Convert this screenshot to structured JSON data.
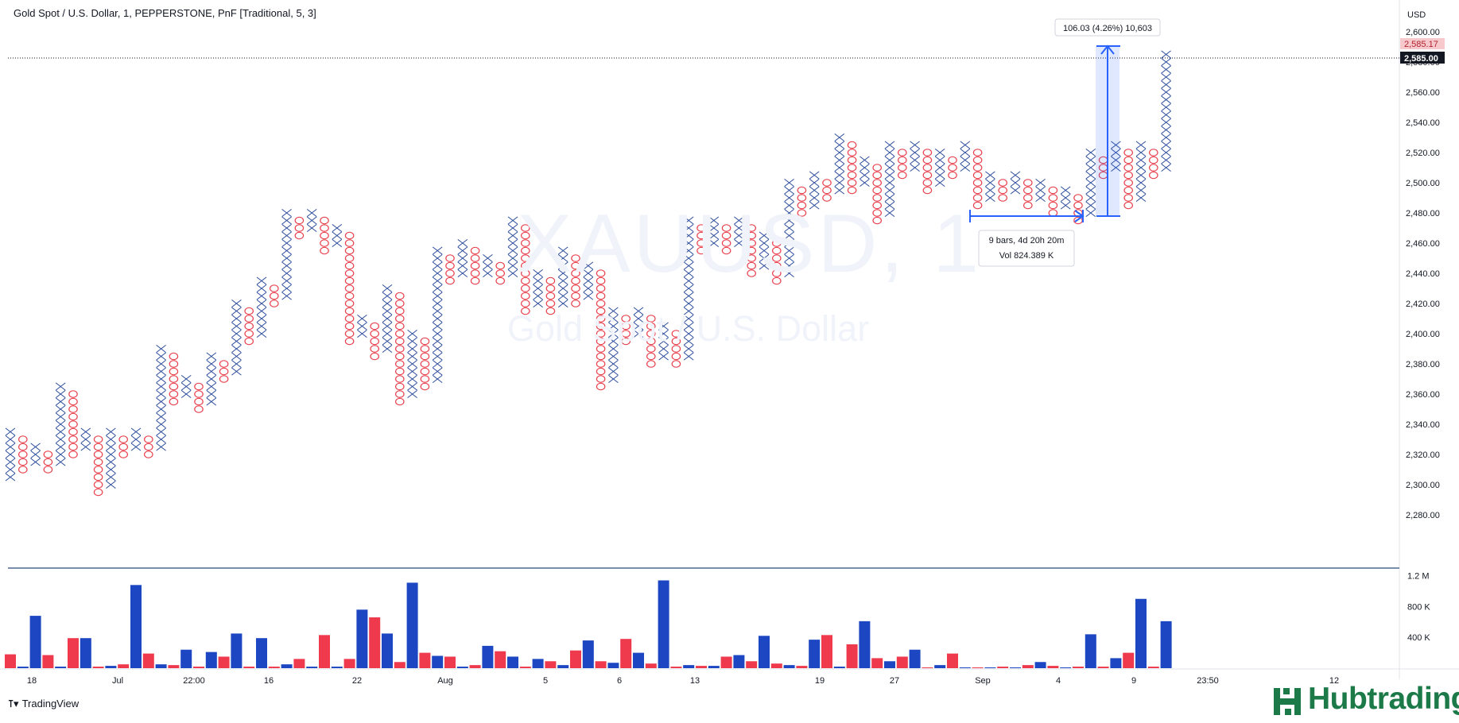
{
  "header": {
    "legend": "Gold Spot / U.S. Dollar, 1, PEPPERSTONE, PnF [Traditional, 5, 3]"
  },
  "watermark": {
    "symbol": "XAUUSD, 1",
    "description": "Gold Spot / U.S. Dollar"
  },
  "price_axis": {
    "currency": "USD",
    "tick_labels": [
      "2,600.00",
      "2,580.00",
      "2,560.00",
      "2,540.00",
      "2,520.00",
      "2,500.00",
      "2,480.00",
      "2,460.00",
      "2,440.00",
      "2,420.00",
      "2,400.00",
      "2,380.00",
      "2,360.00",
      "2,340.00",
      "2,320.00",
      "2,300.00",
      "2,280.00"
    ],
    "last_price_label": "2,585.00",
    "alt_price_label": "2,585.17"
  },
  "volume_axis": {
    "tick_labels": [
      "1.2 M",
      "800 K",
      "400 K"
    ]
  },
  "time_axis": {
    "tick_labels": [
      "18",
      "Jul",
      "22:00",
      "16",
      "22",
      "Aug",
      "5",
      "6",
      "13",
      "19",
      "27",
      "Sep",
      "4",
      "9",
      "23:50",
      "12"
    ]
  },
  "measure": {
    "price_range_label": "106.03 (4.26%) 10,603",
    "bars_label": "9 bars, 4d 20h 20m",
    "vol_label": "Vol 824.389 K"
  },
  "footer": {
    "brand": "TradingView",
    "watermark_logo": "Hubtrading"
  },
  "colors": {
    "x_mark": "#2a4a9b",
    "o_mark": "#e8414d",
    "vol_up": "#1c46c2",
    "vol_down": "#ef3a4d",
    "measure": "#2962ff",
    "last_price_bg": "#131722",
    "alt_price_bg": "#f7c8cc",
    "hub_green": "#1b7a48"
  },
  "chart_data": [
    {
      "type": "point_and_figure",
      "title": "Gold Spot / U.S. Dollar, 1, PEPPERSTONE, PnF [Traditional, 5, 3]",
      "box_size": 5,
      "reversal": 3,
      "ylim": [
        2270,
        2610
      ],
      "columns": [
        {
          "t": "X",
          "lo": 2305,
          "hi": 2335
        },
        {
          "t": "O",
          "lo": 2310,
          "hi": 2330
        },
        {
          "t": "X",
          "lo": 2315,
          "hi": 2325
        },
        {
          "t": "O",
          "lo": 2310,
          "hi": 2320
        },
        {
          "t": "X",
          "lo": 2315,
          "hi": 2365
        },
        {
          "t": "O",
          "lo": 2320,
          "hi": 2360
        },
        {
          "t": "X",
          "lo": 2325,
          "hi": 2335
        },
        {
          "t": "O",
          "lo": 2295,
          "hi": 2330
        },
        {
          "t": "X",
          "lo": 2300,
          "hi": 2335
        },
        {
          "t": "O",
          "lo": 2320,
          "hi": 2330
        },
        {
          "t": "X",
          "lo": 2325,
          "hi": 2335
        },
        {
          "t": "O",
          "lo": 2320,
          "hi": 2330
        },
        {
          "t": "X",
          "lo": 2325,
          "hi": 2390
        },
        {
          "t": "O",
          "lo": 2355,
          "hi": 2385
        },
        {
          "t": "X",
          "lo": 2360,
          "hi": 2370
        },
        {
          "t": "O",
          "lo": 2350,
          "hi": 2365
        },
        {
          "t": "X",
          "lo": 2355,
          "hi": 2385
        },
        {
          "t": "O",
          "lo": 2370,
          "hi": 2380
        },
        {
          "t": "X",
          "lo": 2375,
          "hi": 2420
        },
        {
          "t": "O",
          "lo": 2395,
          "hi": 2415
        },
        {
          "t": "X",
          "lo": 2400,
          "hi": 2435
        },
        {
          "t": "O",
          "lo": 2420,
          "hi": 2430
        },
        {
          "t": "X",
          "lo": 2425,
          "hi": 2480
        },
        {
          "t": "O",
          "lo": 2465,
          "hi": 2475
        },
        {
          "t": "X",
          "lo": 2470,
          "hi": 2480
        },
        {
          "t": "O",
          "lo": 2455,
          "hi": 2475
        },
        {
          "t": "X",
          "lo": 2460,
          "hi": 2470
        },
        {
          "t": "O",
          "lo": 2395,
          "hi": 2465
        },
        {
          "t": "X",
          "lo": 2400,
          "hi": 2410
        },
        {
          "t": "O",
          "lo": 2385,
          "hi": 2405
        },
        {
          "t": "X",
          "lo": 2390,
          "hi": 2430
        },
        {
          "t": "O",
          "lo": 2355,
          "hi": 2425
        },
        {
          "t": "X",
          "lo": 2360,
          "hi": 2400
        },
        {
          "t": "O",
          "lo": 2365,
          "hi": 2395
        },
        {
          "t": "X",
          "lo": 2370,
          "hi": 2455
        },
        {
          "t": "O",
          "lo": 2435,
          "hi": 2450
        },
        {
          "t": "X",
          "lo": 2440,
          "hi": 2460
        },
        {
          "t": "O",
          "lo": 2435,
          "hi": 2455
        },
        {
          "t": "X",
          "lo": 2440,
          "hi": 2450
        },
        {
          "t": "O",
          "lo": 2435,
          "hi": 2445
        },
        {
          "t": "X",
          "lo": 2440,
          "hi": 2475
        },
        {
          "t": "O",
          "lo": 2415,
          "hi": 2470
        },
        {
          "t": "X",
          "lo": 2420,
          "hi": 2440
        },
        {
          "t": "O",
          "lo": 2415,
          "hi": 2435
        },
        {
          "t": "X",
          "lo": 2420,
          "hi": 2455
        },
        {
          "t": "O",
          "lo": 2420,
          "hi": 2450
        },
        {
          "t": "X",
          "lo": 2425,
          "hi": 2445
        },
        {
          "t": "O",
          "lo": 2365,
          "hi": 2440
        },
        {
          "t": "X",
          "lo": 2370,
          "hi": 2415
        },
        {
          "t": "O",
          "lo": 2395,
          "hi": 2410
        },
        {
          "t": "X",
          "lo": 2400,
          "hi": 2415
        },
        {
          "t": "O",
          "lo": 2380,
          "hi": 2410
        },
        {
          "t": "X",
          "lo": 2385,
          "hi": 2405
        },
        {
          "t": "O",
          "lo": 2380,
          "hi": 2400
        },
        {
          "t": "X",
          "lo": 2385,
          "hi": 2475
        },
        {
          "t": "O",
          "lo": 2455,
          "hi": 2470
        },
        {
          "t": "X",
          "lo": 2460,
          "hi": 2475
        },
        {
          "t": "O",
          "lo": 2455,
          "hi": 2470
        },
        {
          "t": "X",
          "lo": 2460,
          "hi": 2475
        },
        {
          "t": "O",
          "lo": 2440,
          "hi": 2470
        },
        {
          "t": "X",
          "lo": 2445,
          "hi": 2465
        },
        {
          "t": "O",
          "lo": 2435,
          "hi": 2460
        },
        {
          "t": "X",
          "lo": 2440,
          "hi": 2500
        },
        {
          "t": "O",
          "lo": 2480,
          "hi": 2495
        },
        {
          "t": "X",
          "lo": 2485,
          "hi": 2505
        },
        {
          "t": "O",
          "lo": 2490,
          "hi": 2500
        },
        {
          "t": "X",
          "lo": 2495,
          "hi": 2530
        },
        {
          "t": "O",
          "lo": 2495,
          "hi": 2525
        },
        {
          "t": "X",
          "lo": 2500,
          "hi": 2515
        },
        {
          "t": "O",
          "lo": 2475,
          "hi": 2510
        },
        {
          "t": "X",
          "lo": 2480,
          "hi": 2525
        },
        {
          "t": "O",
          "lo": 2505,
          "hi": 2520
        },
        {
          "t": "X",
          "lo": 2510,
          "hi": 2525
        },
        {
          "t": "O",
          "lo": 2495,
          "hi": 2520
        },
        {
          "t": "X",
          "lo": 2500,
          "hi": 2520
        },
        {
          "t": "O",
          "lo": 2505,
          "hi": 2515
        },
        {
          "t": "X",
          "lo": 2510,
          "hi": 2525
        },
        {
          "t": "O",
          "lo": 2485,
          "hi": 2520
        },
        {
          "t": "X",
          "lo": 2490,
          "hi": 2505
        },
        {
          "t": "O",
          "lo": 2490,
          "hi": 2500
        },
        {
          "t": "X",
          "lo": 2495,
          "hi": 2505
        },
        {
          "t": "O",
          "lo": 2485,
          "hi": 2500
        },
        {
          "t": "X",
          "lo": 2490,
          "hi": 2500
        },
        {
          "t": "O",
          "lo": 2480,
          "hi": 2495
        },
        {
          "t": "X",
          "lo": 2485,
          "hi": 2495
        },
        {
          "t": "O",
          "lo": 2475,
          "hi": 2490
        },
        {
          "t": "X",
          "lo": 2480,
          "hi": 2520
        },
        {
          "t": "O",
          "lo": 2505,
          "hi": 2515
        },
        {
          "t": "X",
          "lo": 2510,
          "hi": 2525
        },
        {
          "t": "O",
          "lo": 2485,
          "hi": 2520
        },
        {
          "t": "X",
          "lo": 2490,
          "hi": 2525
        },
        {
          "t": "O",
          "lo": 2505,
          "hi": 2520
        },
        {
          "t": "X",
          "lo": 2510,
          "hi": 2585
        }
      ]
    },
    {
      "type": "bar",
      "title": "Volume",
      "ylim": [
        0,
        1300000
      ],
      "values": [
        {
          "v": 180000,
          "c": "down"
        },
        {
          "v": 20000,
          "c": "up"
        },
        {
          "v": 680000,
          "c": "up"
        },
        {
          "v": 170000,
          "c": "down"
        },
        {
          "v": 20000,
          "c": "up"
        },
        {
          "v": 390000,
          "c": "down"
        },
        {
          "v": 390000,
          "c": "up"
        },
        {
          "v": 20000,
          "c": "down"
        },
        {
          "v": 30000,
          "c": "up"
        },
        {
          "v": 50000,
          "c": "down"
        },
        {
          "v": 1080000,
          "c": "up"
        },
        {
          "v": 190000,
          "c": "down"
        },
        {
          "v": 50000,
          "c": "up"
        },
        {
          "v": 40000,
          "c": "down"
        },
        {
          "v": 240000,
          "c": "up"
        },
        {
          "v": 20000,
          "c": "down"
        },
        {
          "v": 210000,
          "c": "up"
        },
        {
          "v": 150000,
          "c": "down"
        },
        {
          "v": 450000,
          "c": "up"
        },
        {
          "v": 20000,
          "c": "down"
        },
        {
          "v": 390000,
          "c": "up"
        },
        {
          "v": 20000,
          "c": "down"
        },
        {
          "v": 50000,
          "c": "up"
        },
        {
          "v": 120000,
          "c": "down"
        },
        {
          "v": 20000,
          "c": "up"
        },
        {
          "v": 430000,
          "c": "down"
        },
        {
          "v": 20000,
          "c": "up"
        },
        {
          "v": 120000,
          "c": "down"
        },
        {
          "v": 760000,
          "c": "up"
        },
        {
          "v": 660000,
          "c": "down"
        },
        {
          "v": 450000,
          "c": "up"
        },
        {
          "v": 80000,
          "c": "down"
        },
        {
          "v": 1110000,
          "c": "up"
        },
        {
          "v": 200000,
          "c": "down"
        },
        {
          "v": 160000,
          "c": "up"
        },
        {
          "v": 150000,
          "c": "down"
        },
        {
          "v": 20000,
          "c": "up"
        },
        {
          "v": 40000,
          "c": "down"
        },
        {
          "v": 290000,
          "c": "up"
        },
        {
          "v": 220000,
          "c": "down"
        },
        {
          "v": 150000,
          "c": "up"
        },
        {
          "v": 20000,
          "c": "down"
        },
        {
          "v": 120000,
          "c": "up"
        },
        {
          "v": 90000,
          "c": "down"
        },
        {
          "v": 40000,
          "c": "up"
        },
        {
          "v": 230000,
          "c": "down"
        },
        {
          "v": 360000,
          "c": "up"
        },
        {
          "v": 90000,
          "c": "down"
        },
        {
          "v": 70000,
          "c": "up"
        },
        {
          "v": 380000,
          "c": "down"
        },
        {
          "v": 200000,
          "c": "up"
        },
        {
          "v": 60000,
          "c": "down"
        },
        {
          "v": 1140000,
          "c": "up"
        },
        {
          "v": 20000,
          "c": "down"
        },
        {
          "v": 40000,
          "c": "up"
        },
        {
          "v": 30000,
          "c": "down"
        },
        {
          "v": 30000,
          "c": "up"
        },
        {
          "v": 150000,
          "c": "down"
        },
        {
          "v": 170000,
          "c": "up"
        },
        {
          "v": 90000,
          "c": "down"
        },
        {
          "v": 420000,
          "c": "up"
        },
        {
          "v": 60000,
          "c": "down"
        },
        {
          "v": 40000,
          "c": "up"
        },
        {
          "v": 30000,
          "c": "down"
        },
        {
          "v": 370000,
          "c": "up"
        },
        {
          "v": 430000,
          "c": "down"
        },
        {
          "v": 20000,
          "c": "up"
        },
        {
          "v": 310000,
          "c": "down"
        },
        {
          "v": 610000,
          "c": "up"
        },
        {
          "v": 130000,
          "c": "down"
        },
        {
          "v": 90000,
          "c": "up"
        },
        {
          "v": 150000,
          "c": "down"
        },
        {
          "v": 240000,
          "c": "up"
        },
        {
          "v": 10000,
          "c": "down"
        },
        {
          "v": 40000,
          "c": "up"
        },
        {
          "v": 190000,
          "c": "down"
        },
        {
          "v": 10000,
          "c": "up"
        },
        {
          "v": 10000,
          "c": "down"
        },
        {
          "v": 10000,
          "c": "up"
        },
        {
          "v": 20000,
          "c": "down"
        },
        {
          "v": 10000,
          "c": "up"
        },
        {
          "v": 40000,
          "c": "down"
        },
        {
          "v": 80000,
          "c": "up"
        },
        {
          "v": 30000,
          "c": "down"
        },
        {
          "v": 10000,
          "c": "up"
        },
        {
          "v": 20000,
          "c": "down"
        },
        {
          "v": 440000,
          "c": "up"
        },
        {
          "v": 20000,
          "c": "down"
        },
        {
          "v": 130000,
          "c": "up"
        },
        {
          "v": 200000,
          "c": "down"
        },
        {
          "v": 900000,
          "c": "up"
        },
        {
          "v": 20000,
          "c": "down"
        },
        {
          "v": 610000,
          "c": "up"
        }
      ]
    }
  ]
}
